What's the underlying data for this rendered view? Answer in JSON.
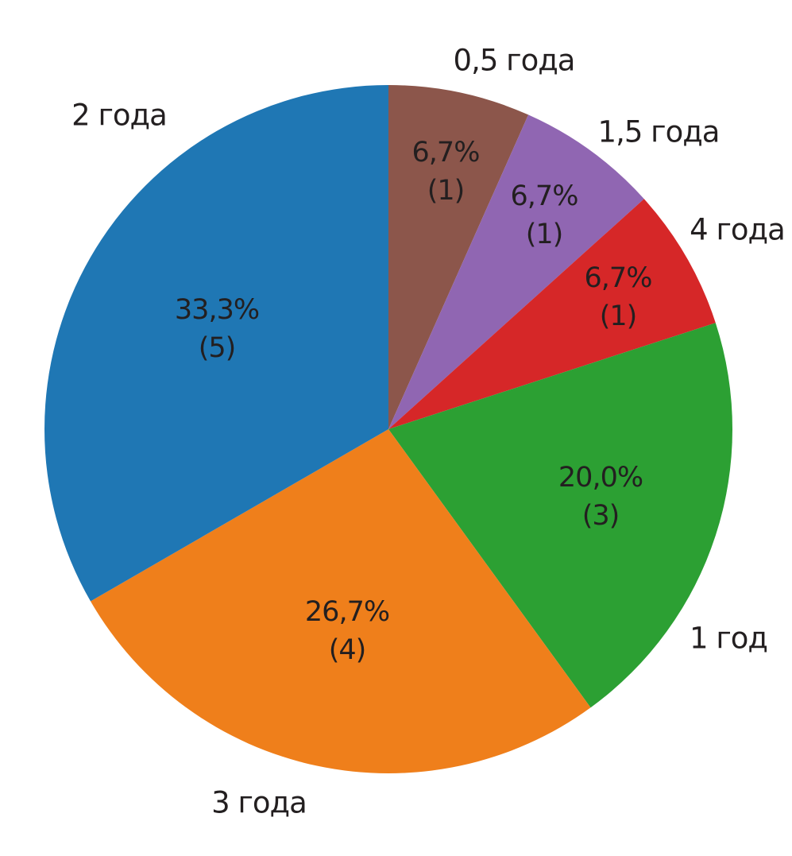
{
  "chart_data": {
    "type": "pie",
    "title": "",
    "direction": "clockwise",
    "start_angle": "12-oclock",
    "total": 15,
    "categories": [
      "0,5 года",
      "1,5 года",
      "4 года",
      "1 год",
      "3 года",
      "2 года"
    ],
    "values": [
      1,
      1,
      1,
      3,
      4,
      5
    ],
    "slices": [
      {
        "label": "0,5 года",
        "value": 1,
        "percent_label": "6,7%",
        "count_label": "(1)",
        "color": "#8c564b"
      },
      {
        "label": "1,5 года",
        "value": 1,
        "percent_label": "6,7%",
        "count_label": "(1)",
        "color": "#9066b2"
      },
      {
        "label": "4 года",
        "value": 1,
        "percent_label": "6,7%",
        "count_label": "(1)",
        "color": "#d62728"
      },
      {
        "label": "1 год",
        "value": 3,
        "percent_label": "20,0%",
        "count_label": "(3)",
        "color": "#2ca033"
      },
      {
        "label": "3 года",
        "value": 4,
        "percent_label": "26,7%",
        "count_label": "(4)",
        "color": "#ef7f1b"
      },
      {
        "label": "2 года",
        "value": 5,
        "percent_label": "33,3%",
        "count_label": "(5)",
        "color": "#1f77b4"
      }
    ],
    "legend_position": "none",
    "text_color": "#231f20",
    "background": "#ffffff"
  }
}
